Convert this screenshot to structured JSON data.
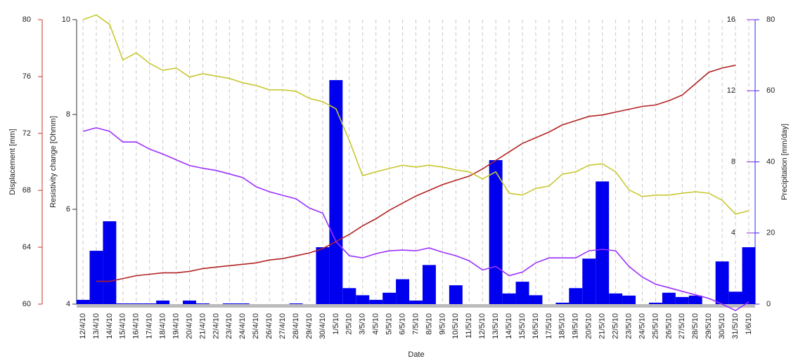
{
  "chart_data": {
    "type": "combo",
    "x_label": "Date",
    "categories": [
      "12/4/10",
      "13/4/10",
      "14/4/10",
      "15/4/10",
      "16/4/10",
      "17/4/10",
      "18/4/10",
      "19/4/10",
      "20/4/10",
      "21/4/10",
      "22/4/10",
      "23/4/10",
      "24/4/10",
      "25/4/10",
      "26/4/10",
      "27/4/10",
      "28/4/10",
      "29/4/10",
      "30/4/10",
      "1/5/10",
      "2/5/10",
      "3/5/10",
      "4/5/10",
      "5/5/10",
      "6/5/10",
      "7/5/10",
      "8/5/10",
      "9/5/10",
      "10/5/10",
      "11/5/10",
      "12/5/10",
      "13/5/10",
      "14/5/10",
      "15/5/10",
      "16/5/10",
      "17/5/10",
      "18/5/10",
      "19/5/10",
      "20/5/10",
      "21/5/10",
      "22/5/10",
      "23/5/10",
      "24/5/10",
      "25/5/10",
      "26/5/10",
      "27/5/10",
      "28/5/10",
      "29/5/10",
      "30/5/10",
      "31/5/10",
      "1/6/10"
    ],
    "axes": [
      {
        "label": "Displacement [mm]",
        "color": "#c0392b",
        "lim": [
          60,
          80
        ],
        "ticks": [
          60,
          64,
          68,
          72,
          76,
          80
        ]
      },
      {
        "label": "Resistivity change [Ohmm]",
        "color": "#333333",
        "lim": [
          4,
          10
        ],
        "ticks": [
          4,
          6,
          8,
          10
        ]
      },
      {
        "color": "#8a2be2",
        "lim": [
          0,
          16
        ],
        "ticks": [
          4,
          8,
          12,
          16
        ]
      },
      {
        "label": "Precipitation [mm/day]",
        "color": "#2a2aff",
        "lim": [
          0,
          80
        ],
        "ticks": [
          0,
          20,
          40,
          60,
          80
        ]
      }
    ],
    "series": [
      {
        "type": "bar",
        "axis": 3,
        "color": "#0000ee",
        "values": [
          1.2,
          15,
          23.3,
          0.2,
          0.2,
          0.2,
          1,
          0,
          1,
          0.2,
          0,
          0.2,
          0.2,
          0,
          0,
          0,
          0.2,
          0,
          16,
          63,
          4.5,
          2.5,
          1.2,
          3.2,
          7,
          1,
          11,
          0,
          5.3,
          0,
          0,
          40.5,
          3,
          6.3,
          2.5,
          0,
          0.4,
          4.5,
          12.8,
          34.5,
          3,
          2.4,
          0,
          0.4,
          3.2,
          2,
          2.4,
          0,
          12,
          3.5,
          16
        ]
      },
      {
        "type": "line",
        "axis": 0,
        "color": "#b22222",
        "values": [
          null,
          61.6,
          61.6,
          61.8,
          62.0,
          62.1,
          62.2,
          62.2,
          62.3,
          62.5,
          62.6,
          62.7,
          62.8,
          62.9,
          63.1,
          63.2,
          63.4,
          63.6,
          63.9,
          64.4,
          64.9,
          65.5,
          66.0,
          66.6,
          67.1,
          67.6,
          68.0,
          68.4,
          68.7,
          69.0,
          69.5,
          70.1,
          70.7,
          71.3,
          71.7,
          72.1,
          72.6,
          72.9,
          73.2,
          73.3,
          73.5,
          73.7,
          73.9,
          74.0,
          74.3,
          74.7,
          75.5,
          76.3,
          76.6,
          76.8,
          null
        ]
      },
      {
        "type": "line",
        "axis": 1,
        "color": "#c8c832",
        "values": [
          10.0,
          10.1,
          9.9,
          9.15,
          9.3,
          9.08,
          8.93,
          8.98,
          8.79,
          8.86,
          8.81,
          8.76,
          8.67,
          8.61,
          8.52,
          8.52,
          8.49,
          8.34,
          8.27,
          8.12,
          7.45,
          6.71,
          6.79,
          6.86,
          6.93,
          6.89,
          6.93,
          6.89,
          6.83,
          6.79,
          6.64,
          6.79,
          6.34,
          6.3,
          6.44,
          6.49,
          6.74,
          6.79,
          6.93,
          6.96,
          6.79,
          6.41,
          6.27,
          6.3,
          6.3,
          6.34,
          6.37,
          6.34,
          6.19,
          5.9,
          5.97
        ]
      },
      {
        "type": "line",
        "axis": 2,
        "color": "#9b30ff",
        "values": [
          9.72,
          9.92,
          9.72,
          9.12,
          9.12,
          8.72,
          8.44,
          8.12,
          7.8,
          7.64,
          7.52,
          7.32,
          7.12,
          6.6,
          6.32,
          6.12,
          5.92,
          5.4,
          5.12,
          3.52,
          2.72,
          2.6,
          2.84,
          3.0,
          3.04,
          3.0,
          3.16,
          2.92,
          2.72,
          2.44,
          1.92,
          2.12,
          1.6,
          1.8,
          2.32,
          2.6,
          2.6,
          2.6,
          3.0,
          3.08,
          3.0,
          2.12,
          1.52,
          1.12,
          0.92,
          0.72,
          0.52,
          0.32,
          0,
          -0.36,
          0.12
        ]
      }
    ]
  }
}
